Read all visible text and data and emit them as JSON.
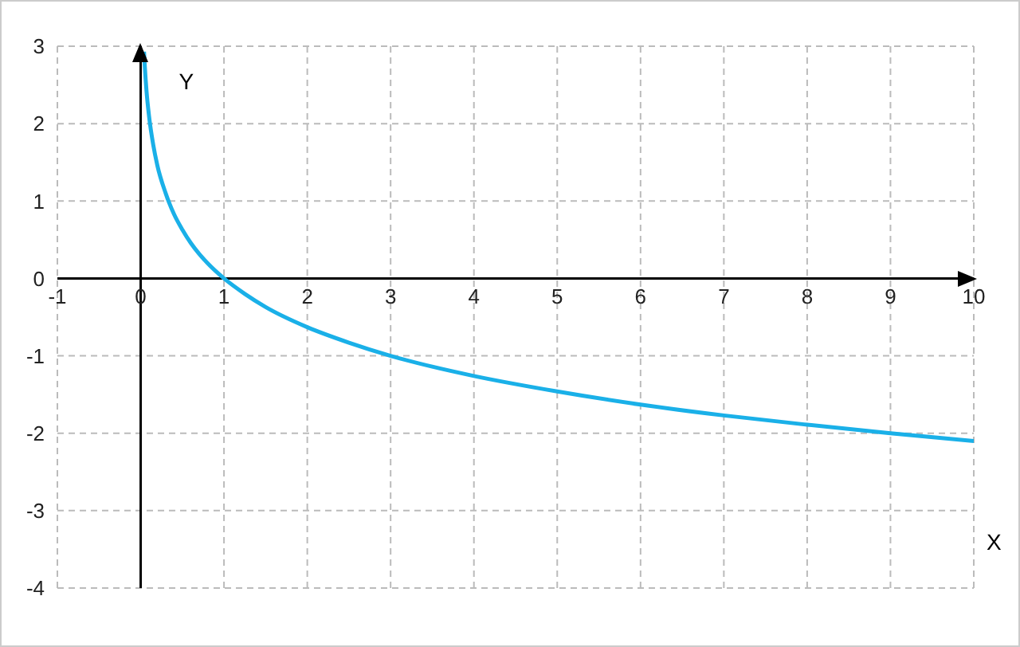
{
  "chart_data": {
    "type": "line",
    "xlabel": "X",
    "ylabel": "Y",
    "x": [
      0.04,
      0.05,
      0.07,
      0.1,
      0.15,
      0.2,
      0.3,
      0.4,
      0.5,
      0.6,
      0.7,
      0.8,
      1,
      1.25,
      1.5,
      2,
      2.5,
      3,
      3.5,
      4,
      5,
      6,
      7,
      8,
      9,
      10
    ],
    "series": [
      {
        "color": "#1ab0e8",
        "values": [
          2.93,
          2.73,
          2.42,
          2.1,
          1.73,
          1.46,
          1.1,
          0.83,
          0.63,
          0.46,
          0.32,
          0.2,
          0,
          -0.2,
          -0.37,
          -0.63,
          -0.83,
          -1,
          -1.14,
          -1.26,
          -1.46,
          -1.63,
          -1.77,
          -1.89,
          -2,
          -2.1
        ]
      }
    ],
    "xlim": [
      -1,
      10
    ],
    "ylim": [
      -4,
      3
    ],
    "xticks": [
      -1,
      0,
      1,
      2,
      3,
      4,
      5,
      6,
      7,
      8,
      9,
      10
    ],
    "yticks": [
      -4,
      -3,
      -2,
      -1,
      0,
      1,
      2,
      3
    ],
    "grid": true,
    "marker": "none",
    "line_style": "solid"
  }
}
